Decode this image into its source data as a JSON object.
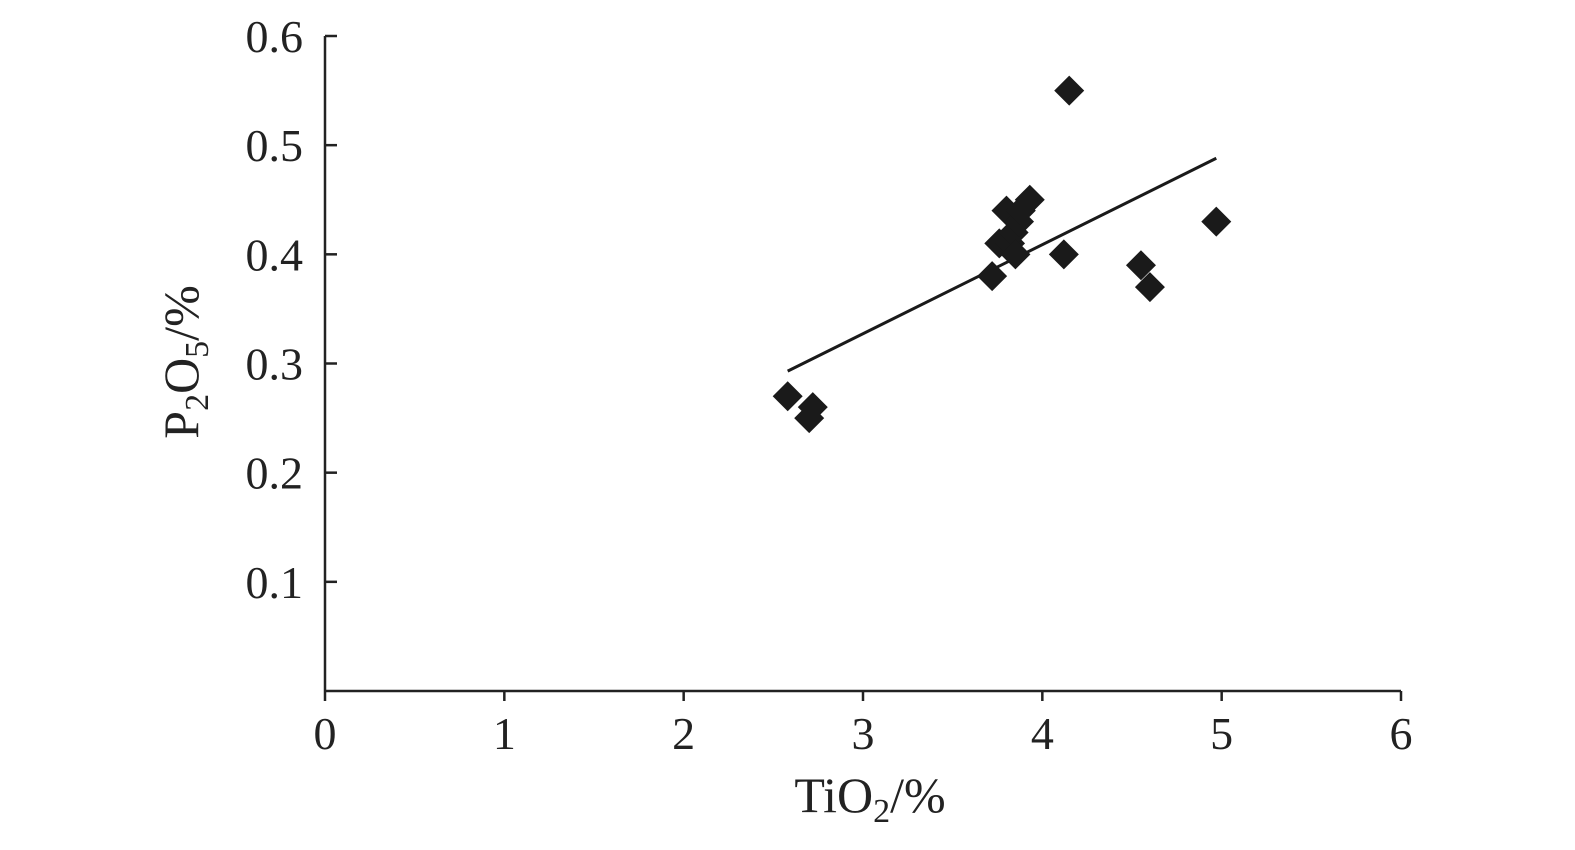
{
  "chart_data": {
    "type": "scatter",
    "title": "",
    "xlabel": {
      "main": "TiO",
      "sub": "2",
      "unit": "/%"
    },
    "ylabel": {
      "main1": "P",
      "sub1": "2",
      "main2": "O",
      "sub2": "5",
      "unit": "/%"
    },
    "xlim": [
      0,
      6
    ],
    "ylim": [
      0,
      0.6
    ],
    "x_ticks": [
      0,
      1,
      2,
      3,
      4,
      5,
      6
    ],
    "x_tick_labels": [
      "0",
      "1",
      "2",
      "3",
      "4",
      "5",
      "6"
    ],
    "y_ticks": [
      0.1,
      0.2,
      0.3,
      0.4,
      0.5,
      0.6
    ],
    "y_tick_labels": [
      "0.1",
      "0.2",
      "0.3",
      "0.4",
      "0.5",
      "0.6"
    ],
    "marker": "diamond",
    "marker_color": "#1a1a1a",
    "points": [
      {
        "x": 2.58,
        "y": 0.27
      },
      {
        "x": 2.72,
        "y": 0.26
      },
      {
        "x": 2.7,
        "y": 0.25
      },
      {
        "x": 3.72,
        "y": 0.38
      },
      {
        "x": 3.76,
        "y": 0.41
      },
      {
        "x": 3.8,
        "y": 0.44
      },
      {
        "x": 3.82,
        "y": 0.41
      },
      {
        "x": 3.84,
        "y": 0.42
      },
      {
        "x": 3.85,
        "y": 0.4
      },
      {
        "x": 3.87,
        "y": 0.43
      },
      {
        "x": 3.88,
        "y": 0.44
      },
      {
        "x": 3.93,
        "y": 0.45
      },
      {
        "x": 4.12,
        "y": 0.4
      },
      {
        "x": 4.15,
        "y": 0.55
      },
      {
        "x": 4.55,
        "y": 0.39
      },
      {
        "x": 4.6,
        "y": 0.37
      },
      {
        "x": 4.97,
        "y": 0.43
      }
    ],
    "trendline": {
      "x": [
        2.58,
        4.97
      ],
      "y": [
        0.293,
        0.488
      ]
    }
  }
}
